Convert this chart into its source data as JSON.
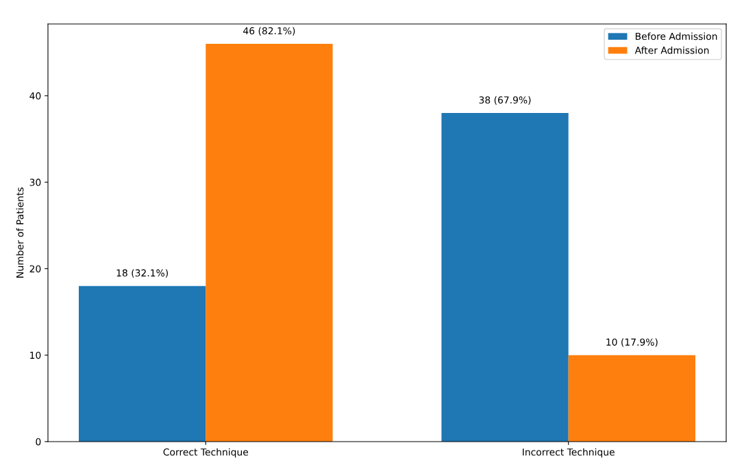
{
  "chart_data": {
    "type": "bar",
    "ylabel": "Number of Patients",
    "categories": [
      "Correct Technique",
      "Incorrect Technique"
    ],
    "series": [
      {
        "name": "Before Admission",
        "color": "#1f77b4",
        "values": [
          18,
          38
        ],
        "value_labels": [
          "18 (32.1%)",
          "38 (67.9%)"
        ]
      },
      {
        "name": "After Admission",
        "color": "#ff7f0e",
        "values": [
          46,
          10
        ],
        "value_labels": [
          "46 (82.1%)",
          "10 (17.9%)"
        ]
      }
    ],
    "ylim": [
      0,
      48.3
    ],
    "yticks": [
      0,
      10,
      20,
      30,
      40
    ],
    "legend": "top right",
    "grid": false
  }
}
